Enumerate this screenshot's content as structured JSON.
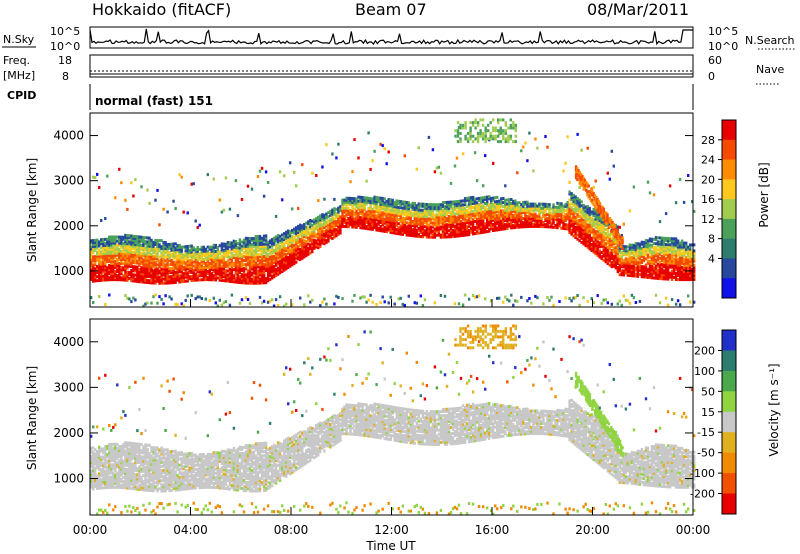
{
  "header": {
    "title": "Hokkaido (fitACF)",
    "beam": "Beam 07",
    "date": "08/Mar/2011"
  },
  "panels": {
    "nsky_label": "N.Sky",
    "nsky_tick_top": "10^5",
    "nsky_tick_bottom": "10^0",
    "nsearch_label": "N.Search",
    "freq_label_line1": "Freq.",
    "freq_label_line2": "[MHz]",
    "freq_tick_top": "18",
    "freq_tick_bottom": "8",
    "nave_tick_top": "60",
    "nave_tick_bottom": "0",
    "nave_label": "Nave",
    "cpid_label": "CPID",
    "cpid_text": "normal (fast) 151"
  },
  "chart_data": [
    {
      "type": "heatmap",
      "name": "power",
      "ylabel": "Slant Range [km]",
      "xlabel": "",
      "ylim": [
        200,
        4500
      ],
      "yticks": [
        "1000",
        "2000",
        "3000",
        "4000"
      ],
      "colorbar": {
        "label": "Power [dB]",
        "ticks": [
          "28",
          "24",
          "20",
          "16",
          "12",
          "8",
          "4"
        ],
        "colors": [
          "#e80000",
          "#f54a00",
          "#ff8c00",
          "#ffc81e",
          "#a0cd50",
          "#4ba05a",
          "#2e7c6e",
          "#2848a0",
          "#1010e8"
        ]
      }
    },
    {
      "type": "heatmap",
      "name": "velocity",
      "ylabel": "Slant Range [km]",
      "xlabel": "Time UT",
      "ylim": [
        200,
        4500
      ],
      "yticks": [
        "1000",
        "2000",
        "3000",
        "4000"
      ],
      "xticks": [
        "00:00",
        "04:00",
        "08:00",
        "12:00",
        "16:00",
        "20:00",
        "00:00"
      ],
      "colorbar": {
        "label": "Velocity [m s⁻¹]",
        "ticks": [
          "200",
          "100",
          "50",
          "15",
          "-15",
          "-50",
          "-100",
          "-200"
        ],
        "colors": [
          "#2030c8",
          "#2c7c70",
          "#4ca84c",
          "#90d440",
          "#c8c8c8",
          "#e0b020",
          "#f08a00",
          "#f05000",
          "#e80000"
        ]
      }
    }
  ]
}
